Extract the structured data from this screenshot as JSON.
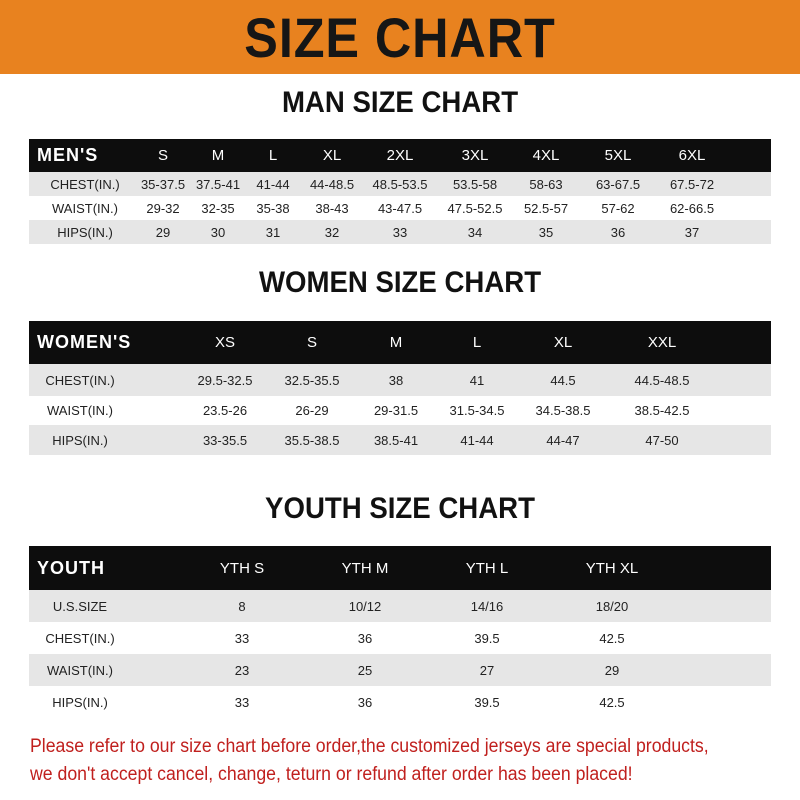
{
  "banner": {
    "title": "SIZE CHART",
    "color": "#e8821f"
  },
  "men": {
    "title": "MAN SIZE CHART",
    "header": [
      "MEN'S",
      "S",
      "M",
      "L",
      "XL",
      "2XL",
      "3XL",
      "4XL",
      "5XL",
      "6XL"
    ],
    "rows": [
      [
        "CHEST(IN.)",
        "35-37.5",
        "37.5-41",
        "41-44",
        "44-48.5",
        "48.5-53.5",
        "53.5-58",
        "58-63",
        "63-67.5",
        "67.5-72"
      ],
      [
        "WAIST(IN.)",
        "29-32",
        "32-35",
        "35-38",
        "38-43",
        "43-47.5",
        "47.5-52.5",
        "52.5-57",
        "57-62",
        "62-66.5"
      ],
      [
        "HIPS(IN.)",
        "29",
        "30",
        "31",
        "32",
        "33",
        "34",
        "35",
        "36",
        "37"
      ]
    ]
  },
  "women": {
    "title": "WOMEN SIZE CHART",
    "header": [
      "WOMEN'S",
      "XS",
      "S",
      "M",
      "L",
      "XL",
      "XXL"
    ],
    "rows": [
      [
        "CHEST(IN.)",
        "29.5-32.5",
        "32.5-35.5",
        "38",
        "41",
        "44.5",
        "44.5-48.5"
      ],
      [
        "WAIST(IN.)",
        "23.5-26",
        "26-29",
        "29-31.5",
        "31.5-34.5",
        "34.5-38.5",
        "38.5-42.5"
      ],
      [
        "HIPS(IN.)",
        "33-35.5",
        "35.5-38.5",
        "38.5-41",
        "41-44",
        "44-47",
        "47-50"
      ]
    ]
  },
  "youth": {
    "title": "YOUTH SIZE CHART",
    "header": [
      "YOUTH",
      "YTH S",
      "YTH M",
      "YTH L",
      "YTH XL"
    ],
    "rows": [
      [
        "U.S.SIZE",
        "8",
        "10/12",
        "14/16",
        "18/20"
      ],
      [
        "CHEST(IN.)",
        "33",
        "36",
        "39.5",
        "42.5"
      ],
      [
        "WAIST(IN.)",
        "23",
        "25",
        "27",
        "29"
      ],
      [
        "HIPS(IN.)",
        "33",
        "36",
        "39.5",
        "42.5"
      ]
    ]
  },
  "footer": {
    "line1": "Please refer to our size chart before order,the customized jerseys are special products,",
    "line2": "we don't accept cancel, change, teturn or refund after order has been placed!",
    "color": "#c0201e"
  }
}
